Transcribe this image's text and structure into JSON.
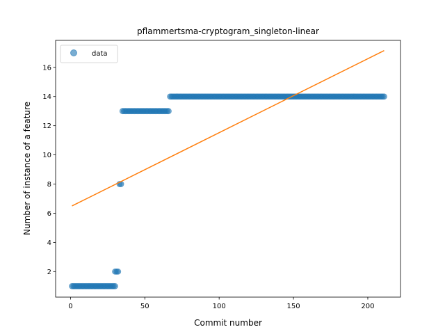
{
  "chart_data": {
    "type": "scatter",
    "title": "pflammertsma-cryptogram_singleton-linear",
    "xlabel": "Commit number",
    "ylabel": "Number of instance of a feature",
    "xlim": [
      -10,
      222
    ],
    "ylim": [
      0.25,
      17.85
    ],
    "xticks": [
      0,
      50,
      100,
      150,
      200
    ],
    "yticks": [
      2,
      4,
      6,
      8,
      10,
      12,
      14,
      16
    ],
    "grid": false,
    "legend_position": "top-left",
    "colors": {
      "data": "#1f77b4",
      "fit": "#ff7f0e"
    },
    "series": [
      {
        "name": "data",
        "kind": "points",
        "segments": [
          {
            "x_from": 1,
            "x_to": 30,
            "y": 1
          },
          {
            "x_from": 30,
            "x_to": 32,
            "y": 2
          },
          {
            "x_from": 33,
            "x_to": 34,
            "y": 8
          },
          {
            "x_from": 35,
            "x_to": 66,
            "y": 13
          },
          {
            "x_from": 67,
            "x_to": 211,
            "y": 14
          }
        ]
      },
      {
        "name": "",
        "kind": "line",
        "x": [
          1,
          211
        ],
        "y": [
          6.5,
          17.15
        ]
      }
    ]
  }
}
